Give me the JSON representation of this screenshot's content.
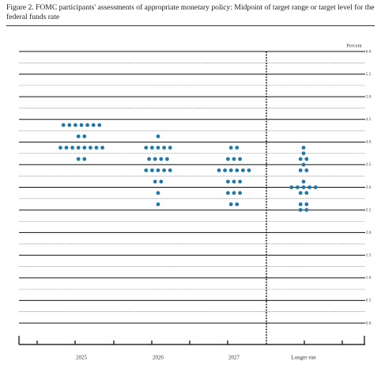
{
  "chart_data": {
    "type": "dotplot",
    "title": "Figure 2. FOMC participants' assessments of appropriate monetary policy: Midpoint of target range or target level for the federal funds rate",
    "y_label": "Percent",
    "color": "#1f78a8",
    "categories": [
      "2025",
      "2026",
      "2027",
      "Longer run"
    ],
    "dots": [
      [
        {
          "value": 4.375,
          "count": 7
        },
        {
          "value": 4.125,
          "count": 2
        },
        {
          "value": 3.875,
          "count": 8
        },
        {
          "value": 3.625,
          "count": 2
        }
      ],
      [
        {
          "value": 4.125,
          "count": 1
        },
        {
          "value": 3.875,
          "count": 5
        },
        {
          "value": 3.625,
          "count": 4
        },
        {
          "value": 3.375,
          "count": 5
        },
        {
          "value": 3.125,
          "count": 2
        },
        {
          "value": 2.875,
          "count": 1
        },
        {
          "value": 2.625,
          "count": 1
        }
      ],
      [
        {
          "value": 3.875,
          "count": 2
        },
        {
          "value": 3.625,
          "count": 3
        },
        {
          "value": 3.375,
          "count": 6
        },
        {
          "value": 3.125,
          "count": 3
        },
        {
          "value": 2.875,
          "count": 3
        },
        {
          "value": 2.625,
          "count": 2
        }
      ],
      [
        {
          "value": 3.875,
          "count": 1
        },
        {
          "value": 3.75,
          "count": 1
        },
        {
          "value": 3.625,
          "count": 2
        },
        {
          "value": 3.5,
          "count": 1
        },
        {
          "value": 3.375,
          "count": 2
        },
        {
          "value": 3.125,
          "count": 1
        },
        {
          "value": 3.0,
          "count": 5
        },
        {
          "value": 2.875,
          "count": 2
        },
        {
          "value": 2.625,
          "count": 2
        },
        {
          "value": 2.5,
          "count": 2
        }
      ]
    ],
    "ylim": [
      0,
      6
    ],
    "yticks": [
      {
        "value": 0,
        "label": "0.0"
      },
      {
        "value": 0.5,
        "label": "0.5"
      },
      {
        "value": 1,
        "label": "1.0"
      },
      {
        "value": 1.5,
        "label": "1.5"
      },
      {
        "value": 2,
        "label": "2.0"
      },
      {
        "value": 2.5,
        "label": "2.5"
      },
      {
        "value": 3,
        "label": "3.0"
      },
      {
        "value": 3.5,
        "label": "3.5"
      },
      {
        "value": 4,
        "label": "4.0"
      },
      {
        "value": 4.5,
        "label": "4.5"
      },
      {
        "value": 5,
        "label": "5.0"
      },
      {
        "value": 5.5,
        "label": "5.5"
      },
      {
        "value": 6,
        "label": "6.0"
      }
    ],
    "grid": true
  }
}
